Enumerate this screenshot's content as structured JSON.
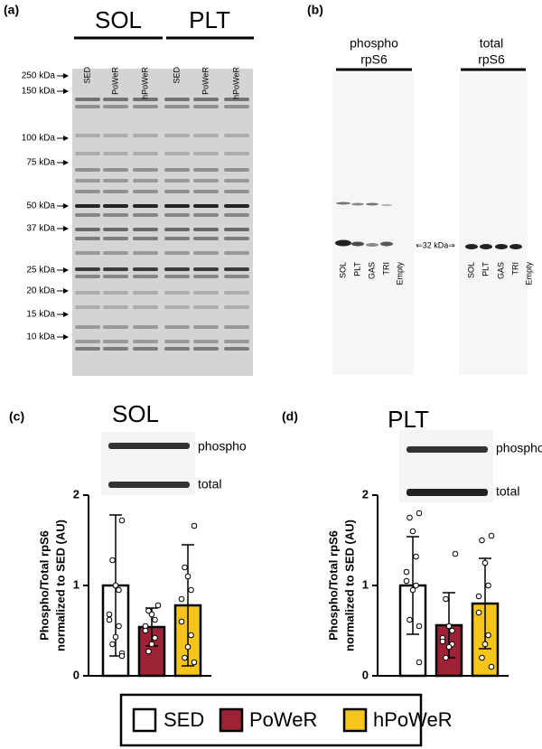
{
  "blots": {
    "a": {
      "label": "(a)",
      "groups": [
        "SOL",
        "PLT"
      ],
      "lanes": [
        "SED",
        "PoWeR",
        "hPoWeR",
        "SED",
        "PoWeR",
        "hPoWeR"
      ],
      "markers": [
        "250 kDa",
        "150 kDa",
        "100 kDa",
        "75 kDa",
        "50 kDa",
        "37 kDa",
        "25 kDa",
        "20 kDa",
        "15 kDa",
        "10 kDa"
      ]
    },
    "b": {
      "label": "(b)",
      "phospho_title": [
        "phospho",
        "rpS6"
      ],
      "total_title": [
        "total",
        "rpS6"
      ],
      "lanes": [
        "SOL",
        "PLT",
        "GAS",
        "TRI",
        "Empty"
      ],
      "size_marker": "⇐32 kDa⇒"
    }
  },
  "chart_data": [
    {
      "type": "bar",
      "panel_label": "(c)",
      "title": "SOL",
      "inset_labels": [
        "phospho",
        "total"
      ],
      "ylabel": [
        "Phospho/Total rpS6",
        "normalized to SED (AU)"
      ],
      "ylim": [
        0,
        2
      ],
      "yticks": [
        0,
        1,
        2
      ],
      "series": [
        {
          "name": "SED",
          "color": "#ffffff",
          "values": [
            1.0
          ],
          "errors": [
            0.78
          ],
          "points": [
            1.72,
            1.28,
            1.0,
            0.95,
            0.68,
            0.62,
            0.55,
            0.43,
            0.35,
            0.25,
            0.22
          ]
        },
        {
          "name": "PoWeR",
          "color": "#9e2236",
          "values": [
            0.54
          ],
          "errors": [
            0.21
          ],
          "points": [
            0.78,
            0.72,
            0.68,
            0.62,
            0.55,
            0.5,
            0.42,
            0.35,
            0.27
          ]
        },
        {
          "name": "hPoWeR",
          "color": "#f6c51b",
          "values": [
            0.78
          ],
          "errors": [
            0.67
          ],
          "points": [
            1.66,
            1.2,
            1.1,
            0.95,
            0.85,
            0.6,
            0.45,
            0.32,
            0.2,
            0.15
          ]
        }
      ]
    },
    {
      "type": "bar",
      "panel_label": "(d)",
      "title": "PLT",
      "inset_labels": [
        "phospho",
        "total"
      ],
      "ylabel": [
        "Phospho/Total rpS6",
        "normalized to SED (AU)"
      ],
      "ylim": [
        0,
        2
      ],
      "yticks": [
        0,
        1,
        2
      ],
      "series": [
        {
          "name": "SED",
          "color": "#ffffff",
          "values": [
            1.0
          ],
          "errors": [
            0.54
          ],
          "points": [
            1.8,
            1.75,
            1.6,
            1.32,
            1.15,
            1.05,
            1.0,
            0.95,
            0.62,
            0.55,
            0.15
          ]
        },
        {
          "name": "PoWeR",
          "color": "#9e2236",
          "values": [
            0.56
          ],
          "errors": [
            0.36
          ],
          "points": [
            1.35,
            0.85,
            0.55,
            0.5,
            0.42,
            0.38,
            0.35,
            0.32,
            0.2
          ]
        },
        {
          "name": "hPoWeR",
          "color": "#f6c51b",
          "values": [
            0.8
          ],
          "errors": [
            0.5
          ],
          "points": [
            1.55,
            1.5,
            1.25,
            1.0,
            0.88,
            0.7,
            0.45,
            0.35,
            0.2,
            0.1
          ]
        }
      ]
    }
  ]
}
